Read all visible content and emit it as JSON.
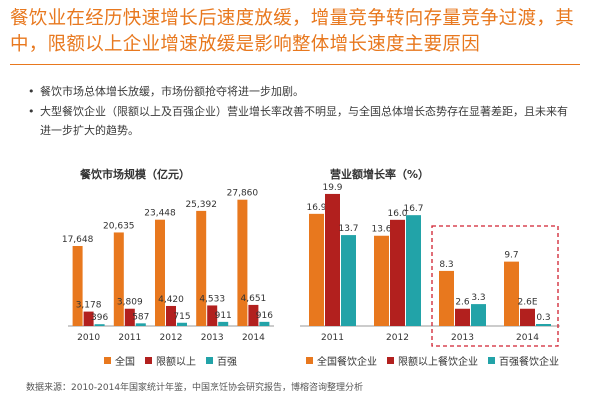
{
  "title": "餐饮业在经历快速增长后速度放缓，增量竞争转向存量竞争过渡，其中，限额以上企业增速放缓是影响整体增长速度主要原因",
  "bullets": [
    "餐饮市场总体增长放缓，市场份额抢夺将进一步加剧。",
    "大型餐饮企业（限额以上及百强企业）营业增长率改善不明显，与全国总体增长态势存在显著差距，且未来有进一步扩大的趋势。"
  ],
  "bullet_marker": "•",
  "colors": {
    "orange": "#e8781e",
    "red": "#b2201e",
    "teal": "#22a3a8",
    "highlight": "#d02030",
    "axis": "#999999"
  },
  "source": "数据来源：2010-2014年国家统计年鉴，中国烹饪协会研究报告，博榕咨询整理分析",
  "chart_data": [
    {
      "type": "bar",
      "title": "餐饮市场规模（亿元）",
      "categories": [
        "2010",
        "2011",
        "2012",
        "2013",
        "2014"
      ],
      "series": [
        {
          "name": "全国",
          "values": [
            17648,
            20635,
            23448,
            25392,
            27860
          ],
          "labels": [
            "17,648",
            "20,635",
            "23,448",
            "25,392",
            "27,860"
          ]
        },
        {
          "name": "限额以上",
          "values": [
            3178,
            3809,
            4420,
            4533,
            4651
          ],
          "labels": [
            "3,178",
            "3,809",
            "4,420",
            "4,533",
            "4,651"
          ]
        },
        {
          "name": "百强",
          "values": [
            396,
            587,
            715,
            911,
            916
          ],
          "labels": [
            "396",
            "587",
            "715",
            "911",
            "916"
          ]
        }
      ],
      "legend": [
        "全国",
        "限额以上",
        "百强"
      ],
      "legend_position": "bottom",
      "ylim": [
        0,
        30000
      ],
      "grid": false
    },
    {
      "type": "bar",
      "title": "营业额增长率（%）",
      "categories": [
        "2011",
        "2012",
        "2013",
        "2014"
      ],
      "series": [
        {
          "name": "全国餐饮企业",
          "values": [
            16.9,
            13.6,
            8.3,
            9.7
          ],
          "labels": [
            "16.9",
            "13.6",
            "8.3",
            "9.7"
          ]
        },
        {
          "name": "限额以上餐饮企业",
          "values": [
            19.9,
            16.0,
            2.6,
            2.6
          ],
          "labels": [
            "19.9",
            "16.0",
            "2.6",
            "2.6E"
          ]
        },
        {
          "name": "百强餐饮企业",
          "values": [
            13.7,
            16.7,
            3.3,
            0.3
          ],
          "labels": [
            "13.7",
            "16.7",
            "3.3",
            "0.3"
          ]
        }
      ],
      "legend": [
        "全国餐饮企业",
        "限额以上餐饮企业",
        "百强餐饮企业"
      ],
      "legend_position": "bottom",
      "ylim": [
        0,
        22
      ],
      "grid": false,
      "highlight": [
        "2013",
        "2014"
      ]
    }
  ]
}
